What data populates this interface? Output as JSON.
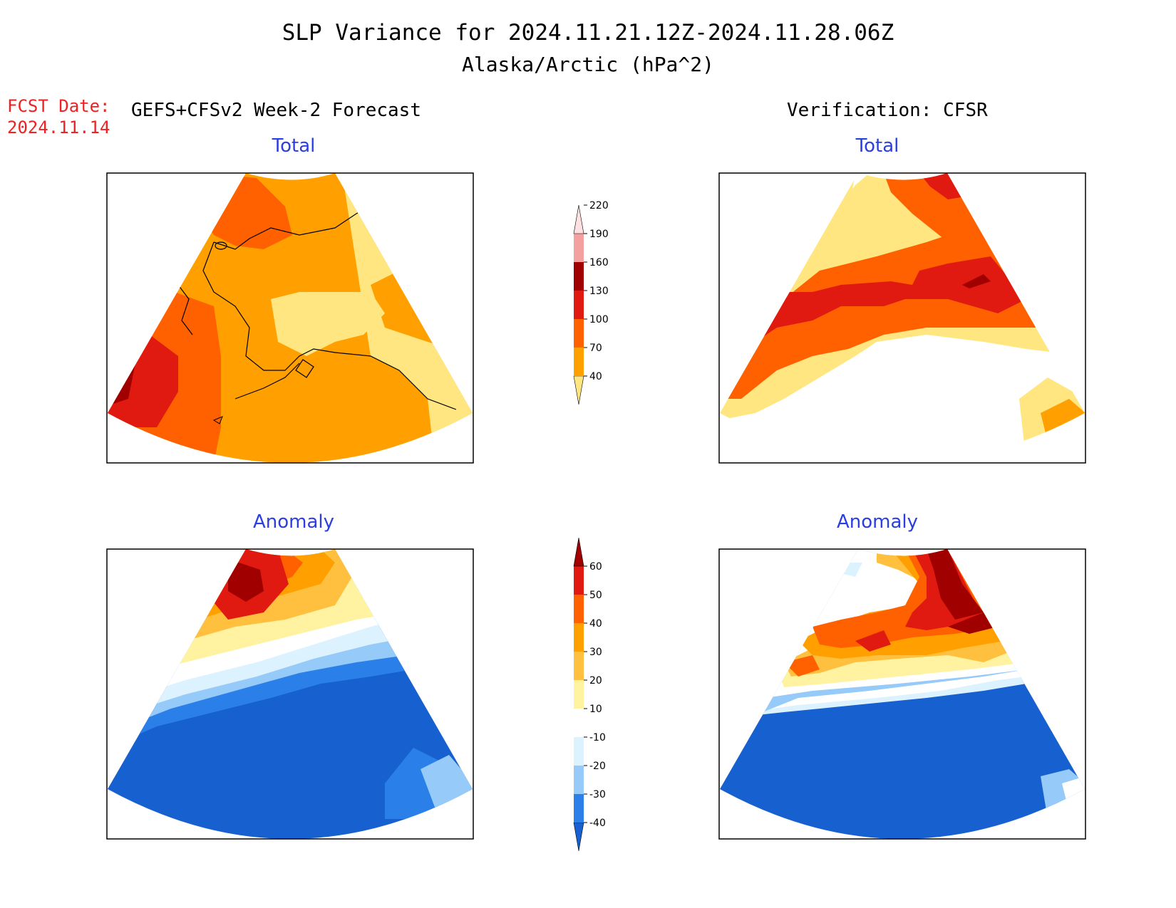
{
  "title": {
    "line1": "SLP Variance for 2024.11.21.12Z-2024.11.28.06Z",
    "line2": "Alaska/Arctic (hPa^2)"
  },
  "fcst": {
    "label": "FCST Date:",
    "date": "2024.11.14"
  },
  "left_header": "GEFS+CFSv2 Week-2 Forecast",
  "right_header": "Verification: CFSR",
  "panels": {
    "forecast_total": {
      "title": "Total"
    },
    "verification_total": {
      "title": "Total"
    },
    "forecast_anomaly": {
      "title": "Anomaly"
    },
    "verification_anomaly": {
      "title": "Anomaly"
    }
  },
  "colorbar_total": {
    "levels": [
      "40",
      "70",
      "100",
      "130",
      "160",
      "190",
      "220"
    ],
    "colors": [
      "#ffe680",
      "#ffa000",
      "#ff6000",
      "#e01a10",
      "#a00000",
      "#f4a0a0",
      "#ffe0e0"
    ]
  },
  "colorbar_anomaly": {
    "levels": [
      "-40",
      "-30",
      "-20",
      "-10",
      "10",
      "20",
      "30",
      "40",
      "50",
      "60"
    ],
    "colors": [
      "#1660d0",
      "#2a80e8",
      "#96caf8",
      "#dcf2ff",
      "#ffffff",
      "#fff2a0",
      "#ffc040",
      "#ffa000",
      "#ff6000",
      "#e01a10",
      "#a00000"
    ]
  },
  "palette": {
    "yellow": "#ffe680",
    "orange": "#ffa000",
    "dark_orange": "#ff6000",
    "red": "#e01a10",
    "dark_red": "#a00000",
    "light_blue": "#96caf8",
    "mid_blue": "#2a80e8",
    "blue": "#1660d0",
    "pale_blue": "#dcf2ff"
  }
}
